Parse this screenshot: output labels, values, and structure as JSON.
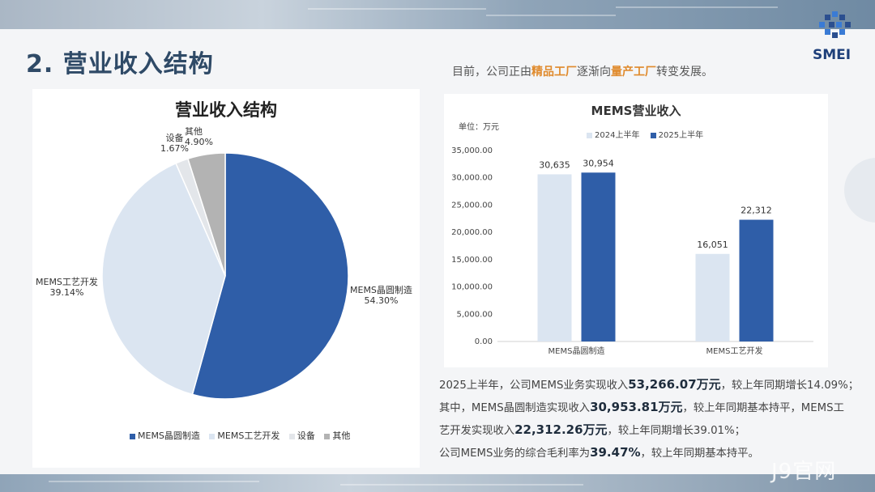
{
  "slide": {
    "title": "2. 营业收入结构",
    "logo_text": "SMEI",
    "intro_pre": "目前，公司正由",
    "intro_hl1": "精品工厂",
    "intro_mid": "逐渐向",
    "intro_hl2": "量产工厂",
    "intro_post": "转变发展。",
    "watermark": "J9官网"
  },
  "summary": {
    "l1a": "2025上半年，公司MEMS业务实现收入",
    "l1b": "53,266.07万元",
    "l1c": "，较上年同期增长14.09%；",
    "l2a": "其中，MEMS晶圆制造实现收入",
    "l2b": "30,953.81万元",
    "l2c": "，较上年同期基本持平，MEMS工",
    "l3a": "艺开发实现收入",
    "l3b": "22,312.26万元",
    "l3c": "，较上年同期增长39.01%；",
    "l4a": "公司MEMS业务的综合毛利率为",
    "l4b": "39.47%",
    "l4c": "，较上年同期基本持平。"
  },
  "chart_data": [
    {
      "type": "pie",
      "title": "营业收入结构",
      "slices": [
        {
          "name": "MEMS晶圆制造",
          "value": 54.3,
          "label": "54.30%",
          "color": "#2f5ea8"
        },
        {
          "name": "MEMS工艺开发",
          "value": 39.14,
          "label": "39.14%",
          "color": "#dbe5f1"
        },
        {
          "name": "设备",
          "value": 1.67,
          "label": "1.67%",
          "color": "#e3e6ea"
        },
        {
          "name": "其他",
          "value": 4.9,
          "label": "4.90%",
          "color": "#b3b3b3"
        }
      ],
      "legend": "bottom"
    },
    {
      "type": "bar",
      "title": "MEMS营业收入",
      "unit_label": "单位：万元",
      "categories": [
        "MEMS晶圆制造",
        "MEMS工艺开发"
      ],
      "series": [
        {
          "name": "2024上半年",
          "values": [
            30635,
            16051
          ],
          "labels": [
            "30,635",
            "16,051"
          ],
          "color": "#dbe5f1"
        },
        {
          "name": "2025上半年",
          "values": [
            30954,
            22312
          ],
          "labels": [
            "30,954",
            "22,312"
          ],
          "color": "#2f5ea8"
        }
      ],
      "ylim": [
        0,
        35000
      ],
      "yticks": [
        "0.00",
        "5,000.00",
        "10,000.00",
        "15,000.00",
        "20,000.00",
        "25,000.00",
        "30,000.00",
        "35,000.00"
      ],
      "legend": "top",
      "grid": false
    }
  ]
}
